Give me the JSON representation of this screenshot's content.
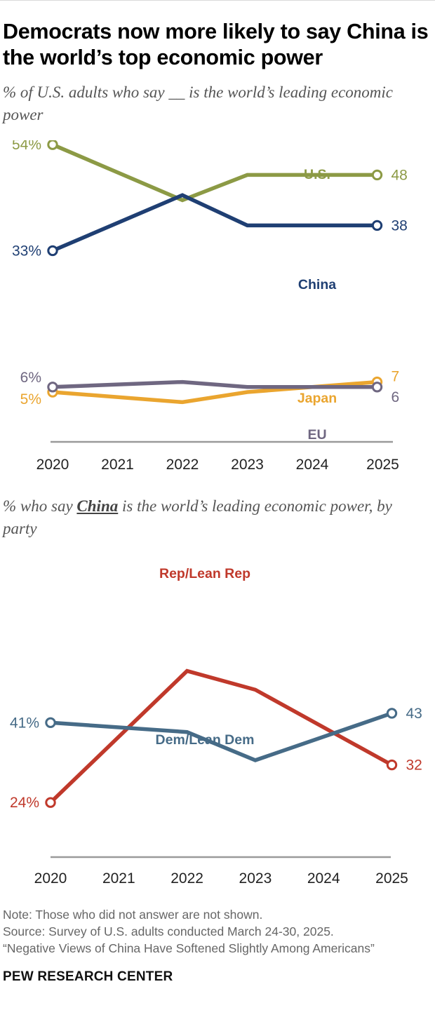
{
  "title": "Democrats now more likely to say China is the world’s top economic power",
  "brand": "PEW RESEARCH CENTER",
  "footer": {
    "note": "Note: Those who did not answer are not shown.",
    "source": "Source: Survey of U.S. adults conducted March 24-30, 2025.",
    "report": "“Negative Views of China Have Softened Slightly Among Americans”"
  },
  "colors": {
    "us": "#8c9a45",
    "china": "#1f3f73",
    "japan": "#eaa52f",
    "eu": "#6f6781",
    "rep": "#c0392b",
    "dem": "#466b87",
    "axis": "#9a9a9a"
  },
  "chart_data": [
    {
      "type": "line",
      "subtitle": "% of U.S. adults who say __ is the world’s leading economic power",
      "x": [
        "2020",
        "2021",
        "2022",
        "2023",
        "2024",
        "2025"
      ],
      "series": [
        {
          "name": "U.S.",
          "values": [
            54,
            null,
            43,
            48,
            48,
            48
          ],
          "start_label": "54%",
          "end_label": "48"
        },
        {
          "name": "China",
          "values": [
            33,
            null,
            44,
            38,
            38,
            38
          ],
          "start_label": "33%",
          "end_label": "38"
        },
        {
          "name": "Japan",
          "values": [
            5,
            null,
            3,
            5,
            6,
            7
          ],
          "start_label": "5%",
          "end_label": "7"
        },
        {
          "name": "EU",
          "values": [
            6,
            null,
            7,
            6,
            6,
            6
          ],
          "start_label": "6%",
          "end_label": "6"
        }
      ]
    },
    {
      "type": "line",
      "subtitle_before": "% who say ",
      "subtitle_emph": "China",
      "subtitle_after": " is the world’s leading economic power, by party",
      "x": [
        "2020",
        "2021",
        "2022",
        "2023",
        "2024",
        "2025"
      ],
      "series": [
        {
          "name": "Rep/Lean Rep",
          "values": [
            24,
            null,
            52,
            48,
            null,
            32
          ],
          "start_label": "24%",
          "end_label": "32"
        },
        {
          "name": "Dem/Lean Dem",
          "values": [
            41,
            null,
            39,
            33,
            null,
            43
          ],
          "start_label": "41%",
          "end_label": "43"
        }
      ]
    }
  ]
}
